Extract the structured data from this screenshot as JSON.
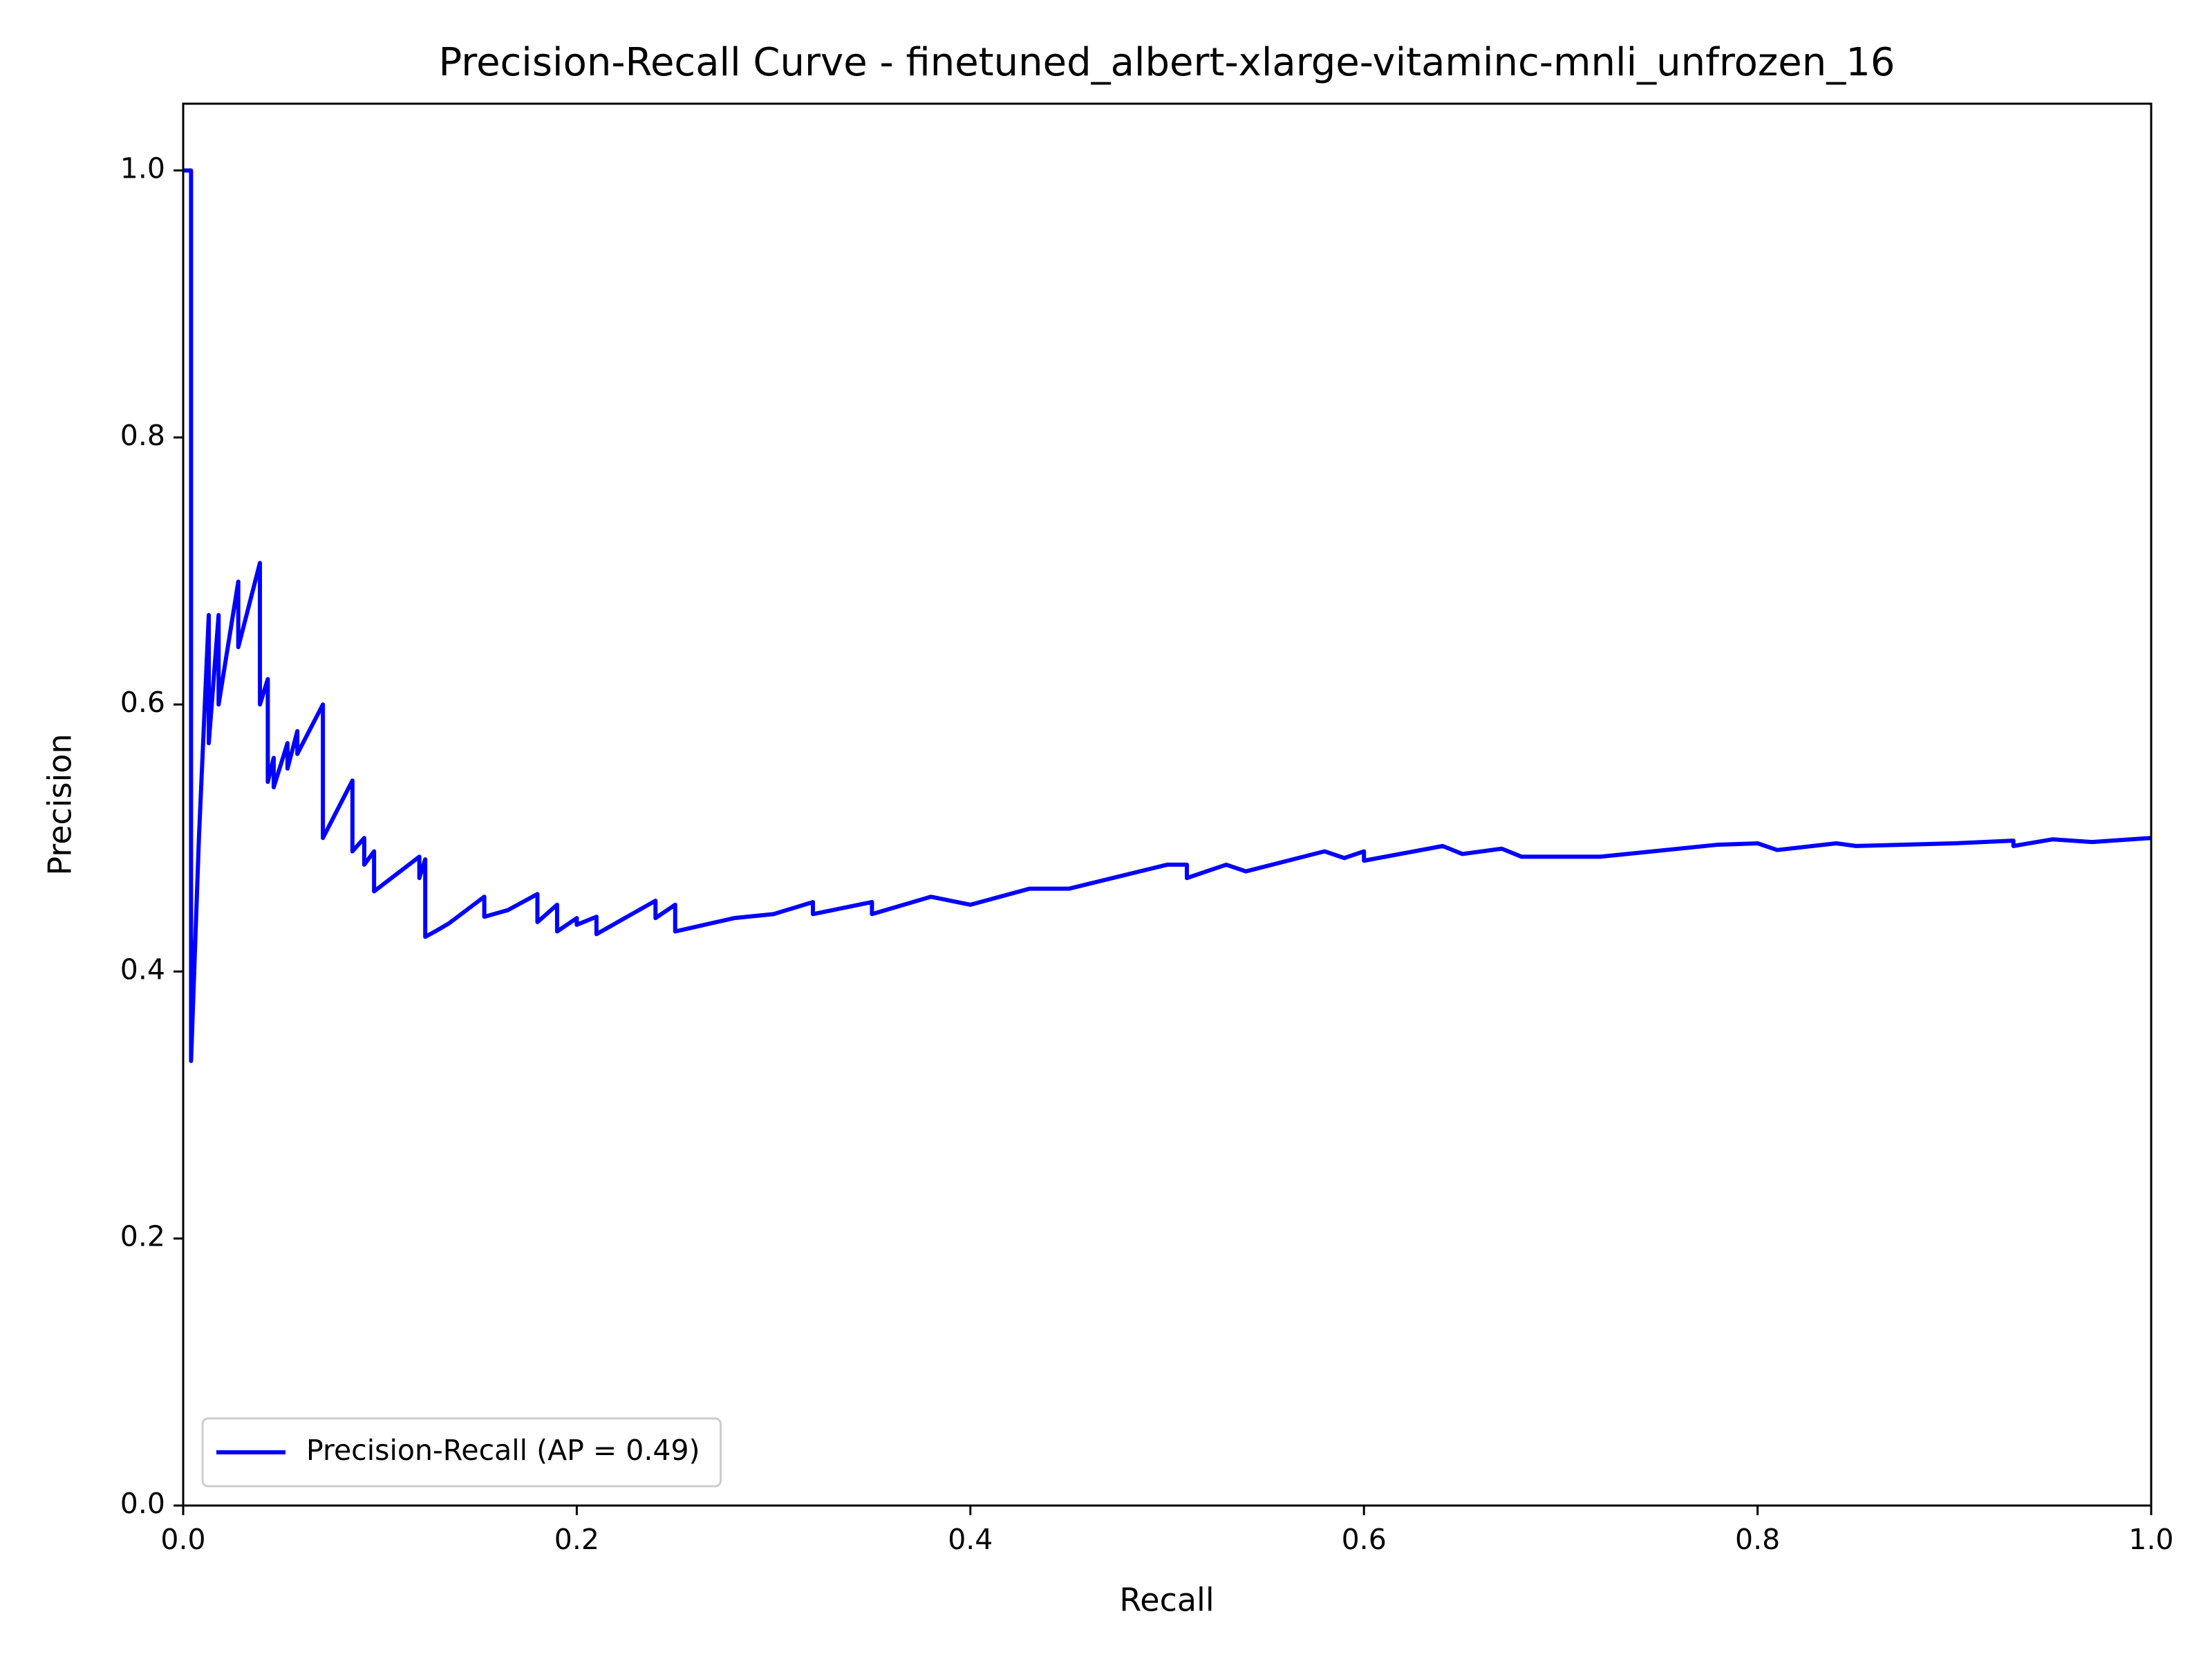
{
  "chart_data": {
    "type": "line",
    "title": "Precision-Recall Curve - finetuned_albert-xlarge-vitaminc-mnli_unfrozen_16",
    "x_label": "Recall",
    "y_label": "Precision",
    "xlim": [
      0,
      1
    ],
    "ylim": [
      0,
      1.05
    ],
    "xticks": [
      {
        "value": 0,
        "label": "0.0"
      },
      0.2,
      0.4,
      0.6,
      0.8,
      {
        "value": 1,
        "label": "1.0"
      }
    ],
    "yticks": [
      {
        "value": 0,
        "label": "0.0"
      },
      0.2,
      0.4,
      0.6,
      0.8,
      {
        "value": 1,
        "label": "1.0"
      }
    ],
    "legend": "lower left",
    "series": [
      {
        "name": "Precision-Recall (AP = 0.49)",
        "color": "#0000ff",
        "x": [
          0,
          0.004,
          0.004,
          0.008,
          0.013,
          0.013,
          0.018,
          0.018,
          0.028,
          0.028,
          0.039,
          0.039,
          0.043,
          0.043,
          0.046,
          0.046,
          0.053,
          0.053,
          0.058,
          0.058,
          0.071,
          0.071,
          0.086,
          0.086,
          0.092,
          0.092,
          0.097,
          0.097,
          0.12,
          0.12,
          0.123,
          0.123,
          0.128,
          0.135,
          0.153,
          0.153,
          0.165,
          0.18,
          0.18,
          0.19,
          0.19,
          0.2,
          0.2,
          0.21,
          0.21,
          0.24,
          0.24,
          0.25,
          0.25,
          0.28,
          0.3,
          0.32,
          0.32,
          0.35,
          0.35,
          0.38,
          0.4,
          0.43,
          0.45,
          0.5,
          0.51,
          0.51,
          0.53,
          0.54,
          0.58,
          0.59,
          0.6,
          0.6,
          0.64,
          0.65,
          0.67,
          0.68,
          0.7,
          0.72,
          0.78,
          0.8,
          0.81,
          0.84,
          0.85,
          0.9,
          0.93,
          0.93,
          0.95,
          0.97,
          0.98,
          1
        ],
        "values": [
          1,
          1,
          0.333,
          0.5,
          0.667,
          0.571,
          0.667,
          0.6,
          0.692,
          0.643,
          0.706,
          0.6,
          0.619,
          0.542,
          0.56,
          0.538,
          0.571,
          0.552,
          0.58,
          0.563,
          0.6,
          0.5,
          0.543,
          0.49,
          0.5,
          0.48,
          0.49,
          0.46,
          0.486,
          0.47,
          0.484,
          0.426,
          0.43,
          0.436,
          0.456,
          0.441,
          0.446,
          0.458,
          0.437,
          0.45,
          0.43,
          0.44,
          0.435,
          0.441,
          0.428,
          0.453,
          0.44,
          0.45,
          0.43,
          0.44,
          0.443,
          0.452,
          0.443,
          0.452,
          0.443,
          0.456,
          0.45,
          0.462,
          0.462,
          0.48,
          0.48,
          0.47,
          0.48,
          0.475,
          0.49,
          0.485,
          0.49,
          0.483,
          0.494,
          0.488,
          0.492,
          0.486,
          0.486,
          0.486,
          0.495,
          0.496,
          0.491,
          0.496,
          0.494,
          0.496,
          0.498,
          0.494,
          0.499,
          0.497,
          0.498,
          0.5
        ]
      }
    ]
  }
}
